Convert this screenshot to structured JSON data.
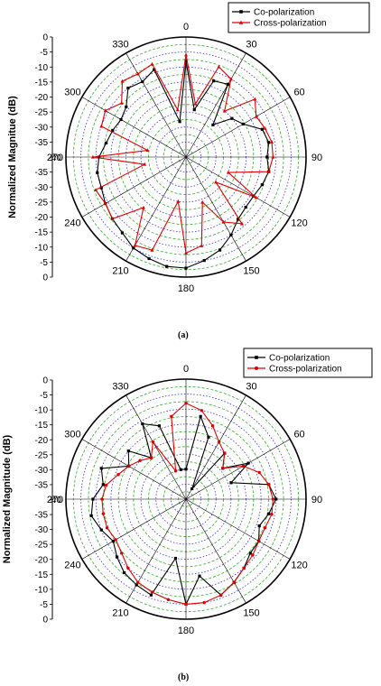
{
  "figure": {
    "panels": [
      {
        "caption": "(a)"
      },
      {
        "caption": "(b)"
      }
    ]
  },
  "chart_data": [
    {
      "type": "polar-line",
      "title": "",
      "ylabel": "Normalized Magnitue (dB)",
      "angle_ticks": [
        "0",
        "30",
        "60",
        "90",
        "120",
        "150",
        "180",
        "210",
        "240",
        "270",
        "300",
        "330"
      ],
      "r_tick_labels": [
        "0",
        "-5",
        "-10",
        "-15",
        "-20",
        "-25",
        "-30",
        "-35",
        "-40"
      ],
      "r_lim_db": [
        -40,
        0
      ],
      "grid": true,
      "legend_position": "top-right",
      "colors": {
        "co": "#000000",
        "cross": "#e00000",
        "ring_green": "#33aa33",
        "ring_blue": "#3333cc"
      },
      "series": [
        {
          "name": "Co-polarization",
          "color": "#000000",
          "marker": "square",
          "theta_deg": [
            0,
            10,
            20,
            30,
            40,
            50,
            60,
            70,
            80,
            90,
            100,
            110,
            120,
            130,
            140,
            150,
            160,
            170,
            180,
            190,
            200,
            210,
            220,
            230,
            240,
            250,
            260,
            270,
            280,
            290,
            300,
            310,
            320,
            330,
            340,
            350
          ],
          "r_db": [
            -8,
            -24,
            -13,
            -12,
            -26,
            -20,
            -18,
            -13,
            -12,
            -13,
            -12,
            -13,
            -14,
            -14,
            -13,
            -10,
            -7,
            -5,
            -3,
            -3,
            -4,
            -5,
            -7,
            -8,
            -9,
            -10,
            -10,
            -11,
            -13,
            -14,
            -15,
            -14,
            -10,
            -11,
            -9,
            -28
          ]
        },
        {
          "name": "Cross-polarization",
          "color": "#e00000",
          "marker": "triangle",
          "theta_deg": [
            0,
            10,
            20,
            30,
            40,
            50,
            60,
            70,
            80,
            90,
            100,
            110,
            120,
            130,
            140,
            150,
            160,
            170,
            180,
            190,
            200,
            210,
            220,
            230,
            240,
            250,
            260,
            270,
            280,
            290,
            300,
            310,
            320,
            330,
            340,
            350
          ],
          "r_db": [
            -6,
            -22,
            -8,
            -10,
            -20,
            -10,
            -13,
            -12,
            -11,
            -11,
            -12,
            -25,
            -13,
            -27,
            -11,
            -15,
            -24,
            -10,
            -8,
            -25,
            -7,
            -6,
            -18,
            -8,
            -9,
            -8,
            -26,
            -9,
            -27,
            -10,
            -9,
            -12,
            -7,
            -8,
            -7,
            -24
          ]
        }
      ]
    },
    {
      "type": "polar-line",
      "title": "",
      "ylabel": "Normalized Magnitude (dB)",
      "angle_ticks": [
        "0",
        "30",
        "60",
        "90",
        "120",
        "150",
        "180",
        "210",
        "240",
        "270",
        "300",
        "330"
      ],
      "r_tick_labels": [
        "0",
        "-5",
        "-10",
        "-15",
        "-20",
        "-25",
        "-30",
        "-35",
        "-40"
      ],
      "r_lim_db": [
        -40,
        0
      ],
      "grid": true,
      "legend_position": "top-right",
      "colors": {
        "co": "#000000",
        "cross": "#e00000",
        "ring_green": "#33aa33",
        "ring_blue": "#3333cc"
      },
      "series": [
        {
          "name": "Co-polarization",
          "color": "#000000",
          "marker": "square",
          "theta_deg": [
            0,
            10,
            20,
            30,
            40,
            50,
            60,
            70,
            80,
            90,
            100,
            110,
            120,
            130,
            140,
            150,
            160,
            170,
            180,
            190,
            200,
            210,
            220,
            230,
            240,
            250,
            260,
            270,
            280,
            290,
            300,
            310,
            320,
            330,
            340,
            350
          ],
          "r_db": [
            -30,
            -12,
            -18,
            -36,
            -20,
            -24,
            -16,
            -24,
            -12,
            -10,
            -12,
            -14,
            -12,
            -12,
            -10,
            -8,
            -6,
            -14,
            -5,
            -20,
            -6,
            -7,
            -8,
            -10,
            -12,
            -10,
            -8,
            -9,
            -12,
            -10,
            -18,
            -15,
            -22,
            -11,
            -14,
            -30
          ]
        },
        {
          "name": "Cross-polarization",
          "color": "#e00000",
          "marker": "circle",
          "theta_deg": [
            0,
            10,
            20,
            30,
            40,
            50,
            60,
            70,
            80,
            90,
            100,
            110,
            120,
            130,
            140,
            150,
            160,
            170,
            180,
            190,
            200,
            210,
            220,
            230,
            240,
            250,
            260,
            270,
            280,
            290,
            300,
            310,
            320,
            330,
            340,
            350
          ],
          "r_db": [
            -8,
            -10,
            -14,
            -18,
            -20,
            -24,
            -18,
            -14,
            -12,
            -11,
            -11,
            -12,
            -12,
            -11,
            -10,
            -8,
            -6,
            -5,
            -5,
            -6,
            -7,
            -8,
            -10,
            -12,
            -13,
            -12,
            -12,
            -12,
            -13,
            -16,
            -18,
            -20,
            -22,
            -18,
            -30,
            -12
          ]
        }
      ]
    }
  ]
}
